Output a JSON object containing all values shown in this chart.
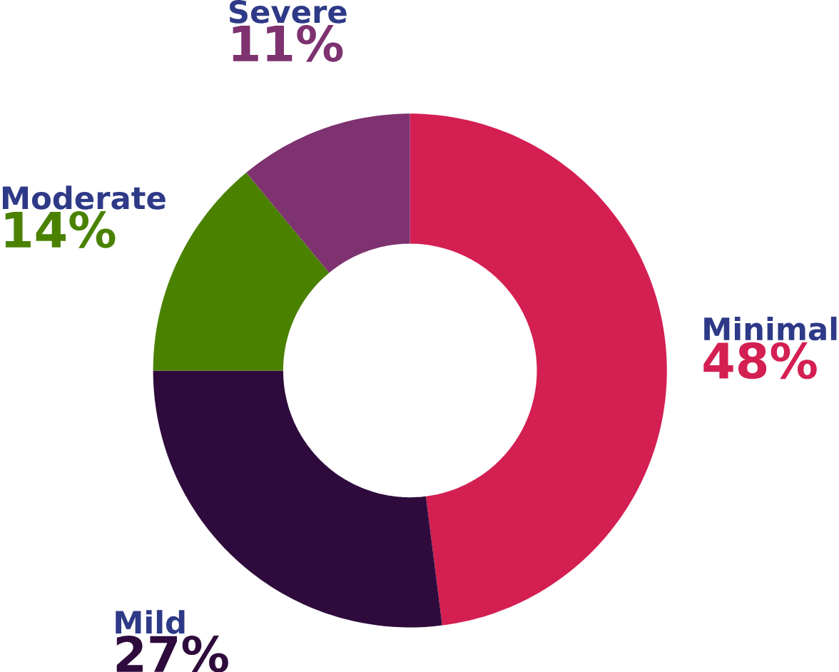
{
  "chart_data": {
    "type": "donut",
    "categories": [
      "Minimal",
      "Mild",
      "Moderate",
      "Severe"
    ],
    "values": [
      48,
      27,
      14,
      11
    ],
    "value_labels": [
      "48%",
      "27%",
      "14%",
      "11%"
    ],
    "colors": [
      "#d41f52",
      "#2e0b3c",
      "#4a8200",
      "#7e3270"
    ]
  }
}
